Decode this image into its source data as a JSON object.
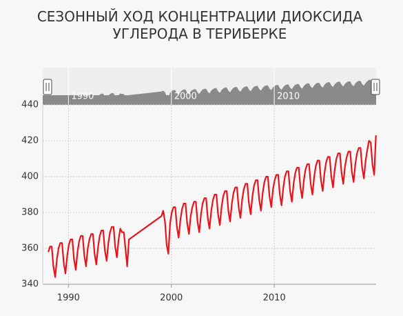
{
  "chart_data": {
    "type": "line",
    "title": "СЕЗОННЫЙ ХОД КОНЦЕНТРАЦИИ ДИОКСИДА УГЛЕРОДА В ТЕРИБЕРКЕ",
    "x": [
      1988.04,
      1988.21,
      1988.38,
      1988.54,
      1988.71,
      1988.88,
      1989.04,
      1989.21,
      1989.38,
      1989.54,
      1989.71,
      1989.88,
      1990.04,
      1990.21,
      1990.38,
      1990.54,
      1990.71,
      1990.88,
      1991.04,
      1991.21,
      1991.38,
      1991.54,
      1991.71,
      1991.88,
      1992.04,
      1992.21,
      1992.38,
      1992.54,
      1992.71,
      1992.88,
      1993.04,
      1993.21,
      1993.38,
      1993.54,
      1993.71,
      1993.88,
      1994.04,
      1994.21,
      1994.38,
      1994.54,
      1994.71,
      1994.88,
      1995.04,
      1995.21,
      1995.38,
      1995.54,
      1995.71,
      1995.88,
      1999.04,
      1999.21,
      1999.38,
      1999.54,
      1999.71,
      1999.88,
      2000.04,
      2000.21,
      2000.38,
      2000.54,
      2000.71,
      2000.88,
      2001.04,
      2001.21,
      2001.38,
      2001.54,
      2001.71,
      2001.88,
      2002.04,
      2002.21,
      2002.38,
      2002.54,
      2002.71,
      2002.88,
      2003.04,
      2003.21,
      2003.38,
      2003.54,
      2003.71,
      2003.88,
      2004.04,
      2004.21,
      2004.38,
      2004.54,
      2004.71,
      2004.88,
      2005.04,
      2005.21,
      2005.38,
      2005.54,
      2005.71,
      2005.88,
      2006.04,
      2006.21,
      2006.38,
      2006.54,
      2006.71,
      2006.88,
      2007.04,
      2007.21,
      2007.38,
      2007.54,
      2007.71,
      2007.88,
      2008.04,
      2008.21,
      2008.38,
      2008.54,
      2008.71,
      2008.88,
      2009.04,
      2009.21,
      2009.38,
      2009.54,
      2009.71,
      2009.88,
      2010.04,
      2010.21,
      2010.38,
      2010.54,
      2010.71,
      2010.88,
      2011.04,
      2011.21,
      2011.38,
      2011.54,
      2011.71,
      2011.88,
      2012.04,
      2012.21,
      2012.38,
      2012.54,
      2012.71,
      2012.88,
      2013.04,
      2013.21,
      2013.38,
      2013.54,
      2013.71,
      2013.88,
      2014.04,
      2014.21,
      2014.38,
      2014.54,
      2014.71,
      2014.88,
      2015.04,
      2015.21,
      2015.38,
      2015.54,
      2015.71,
      2015.88,
      2016.04,
      2016.21,
      2016.38,
      2016.54,
      2016.71,
      2016.88,
      2017.04,
      2017.21,
      2017.38,
      2017.54,
      2017.71,
      2017.88,
      2018.04,
      2018.21,
      2018.38,
      2018.54,
      2018.71,
      2018.88,
      2019.04,
      2019.21,
      2019.38,
      2019.54,
      2019.71,
      2019.88
    ],
    "series": [
      {
        "color": "#e8141b",
        "values": [
          358,
          361,
          361,
          350,
          344,
          354,
          360,
          363,
          363,
          352,
          346,
          356,
          362,
          365,
          365,
          354,
          348,
          358,
          364,
          367,
          367,
          356,
          350,
          360,
          365,
          368,
          368,
          357,
          351,
          361,
          367,
          370,
          370,
          359,
          353,
          363,
          369,
          372,
          372,
          361,
          355,
          365,
          371,
          369,
          369,
          360,
          350,
          365,
          378,
          381,
          375,
          362,
          357,
          374,
          380,
          383,
          383,
          372,
          366,
          376,
          382,
          385,
          385,
          374,
          368,
          378,
          383,
          386,
          386,
          375,
          369,
          379,
          385,
          388,
          388,
          377,
          371,
          381,
          387,
          390,
          390,
          379,
          373,
          383,
          389,
          392,
          392,
          381,
          375,
          385,
          391,
          394,
          394,
          383,
          377,
          387,
          393,
          396,
          396,
          385,
          379,
          389,
          395,
          398,
          398,
          387,
          381,
          391,
          397,
          400,
          400,
          389,
          383,
          393,
          398,
          401,
          401,
          390,
          384,
          394,
          400,
          403,
          403,
          392,
          386,
          396,
          402,
          405,
          405,
          394,
          388,
          398,
          404,
          407,
          407,
          396,
          390,
          400,
          406,
          409,
          409,
          398,
          392,
          402,
          408,
          411,
          411,
          400,
          394,
          404,
          410,
          413,
          413,
          402,
          396,
          406,
          411,
          414,
          414,
          403,
          397,
          407,
          413,
          416,
          416,
          405,
          399,
          409,
          415,
          420,
          419,
          407,
          401,
          423
        ]
      }
    ],
    "xlim": [
      1987.5,
      2019.9
    ],
    "xticks": [
      1990,
      2000,
      2010
    ],
    "ylim": [
      340,
      440
    ],
    "yticks": [
      340,
      360,
      380,
      400,
      420,
      440
    ],
    "grid": true
  }
}
